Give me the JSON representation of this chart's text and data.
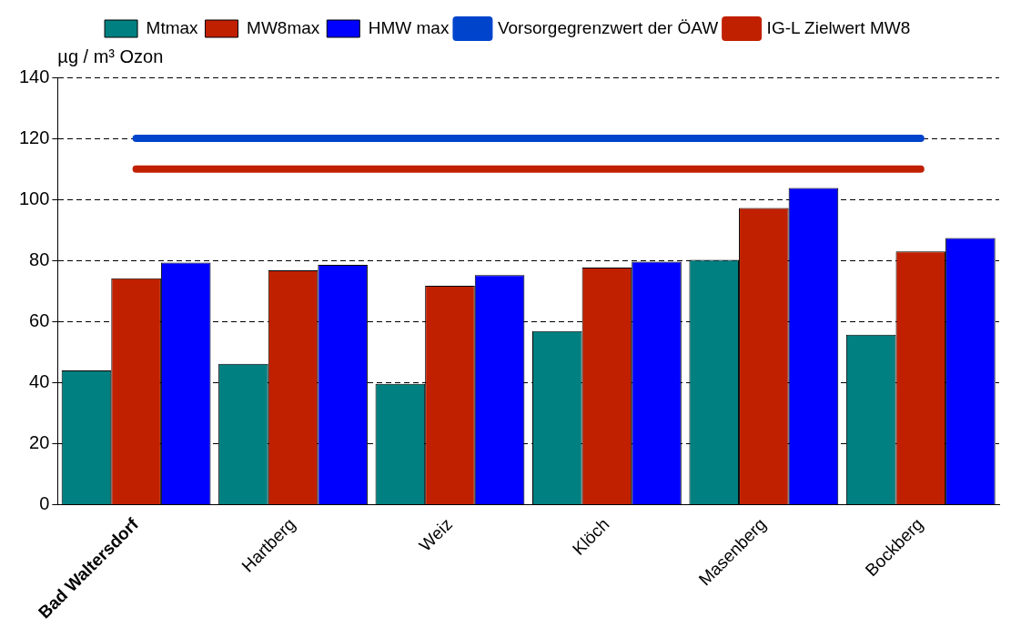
{
  "chart_data": {
    "type": "bar",
    "ylabel": "µg / m³ Ozon",
    "categories": [
      "Bad Waltersdorf",
      "Hartberg",
      "Weiz",
      "Klöch",
      "Masenberg",
      "Bockberg"
    ],
    "series": [
      {
        "name": "Mtmax",
        "color": "#008080",
        "values": [
          44,
          46.2,
          39.6,
          56.9,
          80.2,
          55.7
        ]
      },
      {
        "name": "MW8max",
        "color": "#c02000",
        "values": [
          74.2,
          76.8,
          71.7,
          77.7,
          97.2,
          83
        ]
      },
      {
        "name": "HMW max",
        "color": "#0000ff",
        "values": [
          79.3,
          78.6,
          75.2,
          79.6,
          103.8,
          87.4
        ]
      },
      {
        "name": "Vorsorgegrenzwert der ÖAW",
        "type": "line",
        "color": "#0044cc",
        "values": [
          120,
          120,
          120,
          120,
          120,
          120
        ]
      },
      {
        "name": "IG-L Zielwert MW8",
        "type": "line",
        "color": "#c02000",
        "values": [
          110,
          110,
          110,
          110,
          110,
          110
        ]
      }
    ],
    "ylim": [
      0,
      140
    ],
    "yticks": [
      0,
      20,
      40,
      60,
      80,
      100,
      120,
      140
    ],
    "grid": "y",
    "legend": "top",
    "marker": "none"
  }
}
